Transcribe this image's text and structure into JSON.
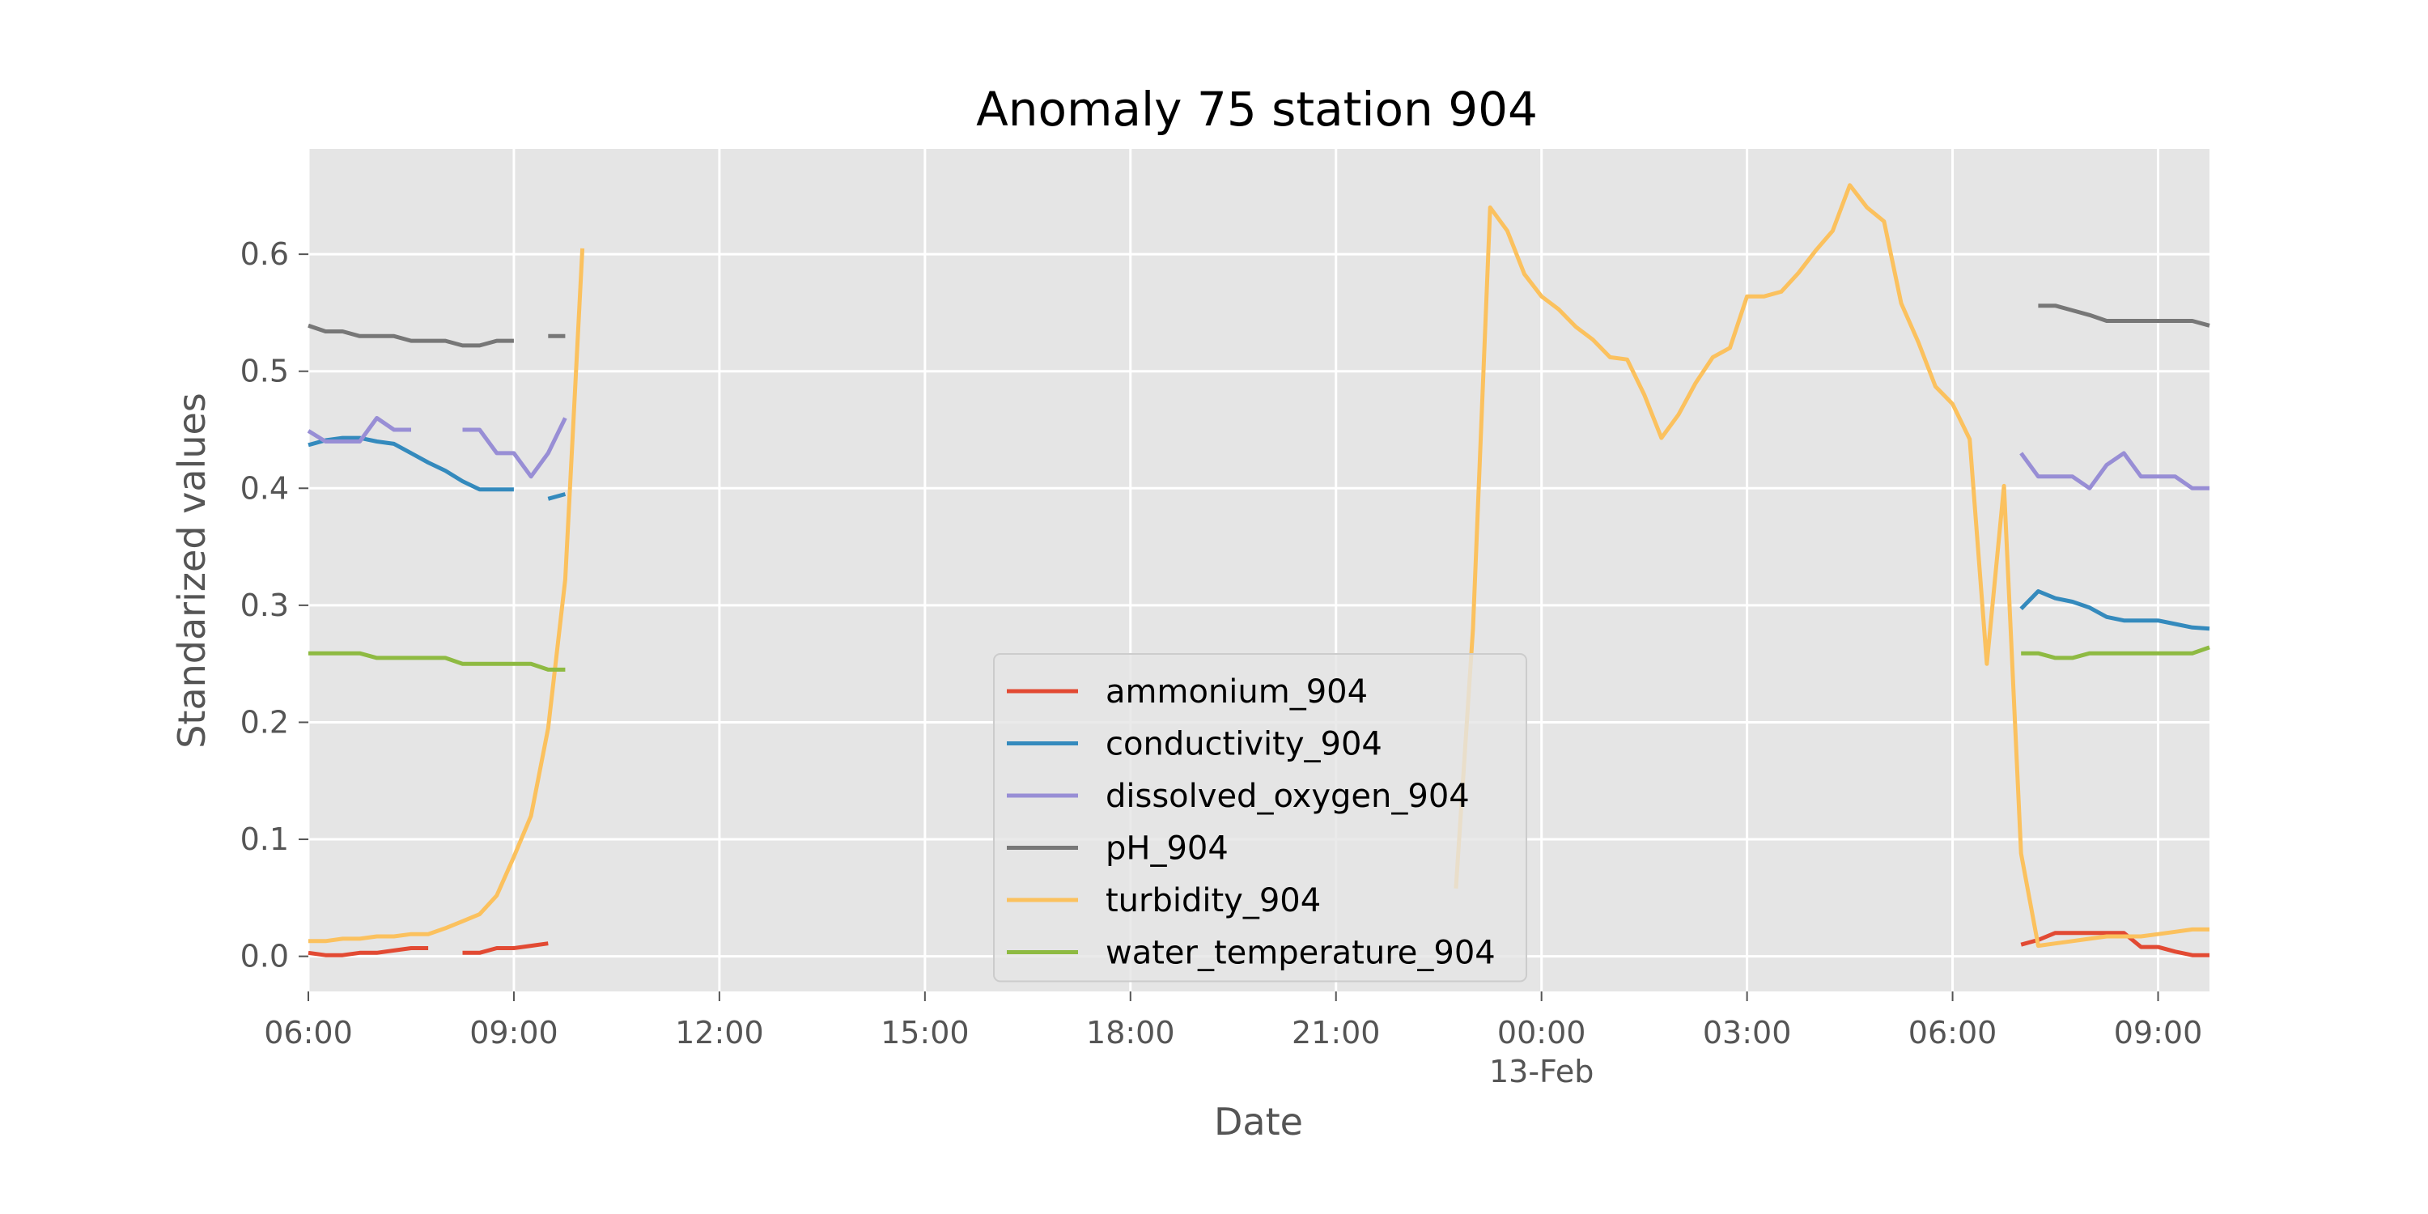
{
  "chart_data": {
    "type": "line",
    "title": "Anomaly 75 station 904",
    "xlabel": "Date",
    "ylabel": "Standarized values",
    "xlim": [
      "2024-02-12T06:00",
      "2024-02-13T09:45"
    ],
    "ylim": [
      -0.03,
      0.69
    ],
    "grid": true,
    "legend_position": "lower-center",
    "x_ticks": [
      {
        "t": "2024-02-12T06:00",
        "label": "06:00"
      },
      {
        "t": "2024-02-12T09:00",
        "label": "09:00"
      },
      {
        "t": "2024-02-12T12:00",
        "label": "12:00"
      },
      {
        "t": "2024-02-12T15:00",
        "label": "15:00"
      },
      {
        "t": "2024-02-12T18:00",
        "label": "18:00"
      },
      {
        "t": "2024-02-12T21:00",
        "label": "21:00"
      },
      {
        "t": "2024-02-13T00:00",
        "label": "00:00",
        "sublabel": "13-Feb"
      },
      {
        "t": "2024-02-13T03:00",
        "label": "03:00"
      },
      {
        "t": "2024-02-13T06:00",
        "label": "06:00"
      },
      {
        "t": "2024-02-13T09:00",
        "label": "09:00"
      }
    ],
    "y_ticks": [
      {
        "v": 0.0,
        "label": "0.0"
      },
      {
        "v": 0.1,
        "label": "0.1"
      },
      {
        "v": 0.2,
        "label": "0.2"
      },
      {
        "v": 0.3,
        "label": "0.3"
      },
      {
        "v": 0.4,
        "label": "0.4"
      },
      {
        "v": 0.5,
        "label": "0.5"
      },
      {
        "v": 0.6,
        "label": "0.6"
      }
    ],
    "series": [
      {
        "name": "ammonium_904",
        "color": "#E24A33",
        "segments": [
          [
            [
              "2024-02-12T06:00",
              0.003
            ],
            [
              "2024-02-12T06:15",
              0.001
            ],
            [
              "2024-02-12T06:30",
              0.001
            ],
            [
              "2024-02-12T06:45",
              0.003
            ],
            [
              "2024-02-12T07:00",
              0.003
            ],
            [
              "2024-02-12T07:15",
              0.005
            ],
            [
              "2024-02-12T07:30",
              0.007
            ],
            [
              "2024-02-12T07:45",
              0.007
            ]
          ],
          [
            [
              "2024-02-12T08:15",
              0.003
            ],
            [
              "2024-02-12T08:30",
              0.003
            ],
            [
              "2024-02-12T08:45",
              0.007
            ],
            [
              "2024-02-12T09:00",
              0.007
            ],
            [
              "2024-02-12T09:15",
              0.009
            ],
            [
              "2024-02-12T09:30",
              0.011
            ]
          ],
          [
            [
              "2024-02-13T07:00",
              0.01
            ],
            [
              "2024-02-13T07:15",
              0.014
            ],
            [
              "2024-02-13T07:30",
              0.02
            ],
            [
              "2024-02-13T07:45",
              0.02
            ],
            [
              "2024-02-13T08:00",
              0.02
            ],
            [
              "2024-02-13T08:15",
              0.02
            ],
            [
              "2024-02-13T08:30",
              0.02
            ],
            [
              "2024-02-13T08:45",
              0.008
            ],
            [
              "2024-02-13T09:00",
              0.008
            ],
            [
              "2024-02-13T09:15",
              0.004
            ],
            [
              "2024-02-13T09:30",
              0.001
            ],
            [
              "2024-02-13T09:45",
              0.001
            ]
          ]
        ]
      },
      {
        "name": "conductivity_904",
        "color": "#348ABD",
        "segments": [
          [
            [
              "2024-02-12T06:00",
              0.437
            ],
            [
              "2024-02-12T06:15",
              0.441
            ],
            [
              "2024-02-12T06:30",
              0.443
            ],
            [
              "2024-02-12T06:45",
              0.443
            ],
            [
              "2024-02-12T07:00",
              0.44
            ],
            [
              "2024-02-12T07:15",
              0.438
            ],
            [
              "2024-02-12T07:30",
              0.43
            ],
            [
              "2024-02-12T07:45",
              0.422
            ],
            [
              "2024-02-12T08:00",
              0.415
            ],
            [
              "2024-02-12T08:15",
              0.406
            ],
            [
              "2024-02-12T08:30",
              0.399
            ],
            [
              "2024-02-12T08:45",
              0.399
            ],
            [
              "2024-02-12T09:00",
              0.399
            ]
          ],
          [
            [
              "2024-02-12T09:30",
              0.391
            ],
            [
              "2024-02-12T09:45",
              0.395
            ]
          ],
          [
            [
              "2024-02-13T07:00",
              0.297
            ],
            [
              "2024-02-13T07:15",
              0.312
            ],
            [
              "2024-02-13T07:30",
              0.306
            ],
            [
              "2024-02-13T07:45",
              0.303
            ],
            [
              "2024-02-13T08:00",
              0.298
            ],
            [
              "2024-02-13T08:15",
              0.29
            ],
            [
              "2024-02-13T08:30",
              0.287
            ],
            [
              "2024-02-13T08:45",
              0.287
            ],
            [
              "2024-02-13T09:00",
              0.287
            ],
            [
              "2024-02-13T09:15",
              0.284
            ],
            [
              "2024-02-13T09:30",
              0.281
            ],
            [
              "2024-02-13T09:45",
              0.28
            ]
          ]
        ]
      },
      {
        "name": "dissolved_oxygen_904",
        "color": "#988ED5",
        "segments": [
          [
            [
              "2024-02-12T06:00",
              0.449
            ],
            [
              "2024-02-12T06:15",
              0.44
            ],
            [
              "2024-02-12T06:30",
              0.44
            ],
            [
              "2024-02-12T06:45",
              0.44
            ],
            [
              "2024-02-12T07:00",
              0.46
            ],
            [
              "2024-02-12T07:15",
              0.45
            ],
            [
              "2024-02-12T07:30",
              0.45
            ]
          ],
          [
            [
              "2024-02-12T08:15",
              0.45
            ],
            [
              "2024-02-12T08:30",
              0.45
            ],
            [
              "2024-02-12T08:45",
              0.43
            ],
            [
              "2024-02-12T09:00",
              0.43
            ],
            [
              "2024-02-12T09:15",
              0.41
            ],
            [
              "2024-02-12T09:30",
              0.43
            ],
            [
              "2024-02-12T09:45",
              0.46
            ]
          ],
          [
            [
              "2024-02-13T07:00",
              0.43
            ],
            [
              "2024-02-13T07:15",
              0.41
            ],
            [
              "2024-02-13T07:30",
              0.41
            ],
            [
              "2024-02-13T07:45",
              0.41
            ],
            [
              "2024-02-13T08:00",
              0.4
            ],
            [
              "2024-02-13T08:15",
              0.42
            ],
            [
              "2024-02-13T08:30",
              0.43
            ],
            [
              "2024-02-13T08:45",
              0.41
            ],
            [
              "2024-02-13T09:00",
              0.41
            ],
            [
              "2024-02-13T09:15",
              0.41
            ],
            [
              "2024-02-13T09:30",
              0.4
            ],
            [
              "2024-02-13T09:45",
              0.4
            ]
          ]
        ]
      },
      {
        "name": "pH_904",
        "color": "#777777",
        "segments": [
          [
            [
              "2024-02-12T06:00",
              0.539
            ],
            [
              "2024-02-12T06:15",
              0.534
            ],
            [
              "2024-02-12T06:30",
              0.534
            ],
            [
              "2024-02-12T06:45",
              0.53
            ],
            [
              "2024-02-12T07:00",
              0.53
            ],
            [
              "2024-02-12T07:15",
              0.53
            ],
            [
              "2024-02-12T07:30",
              0.526
            ],
            [
              "2024-02-12T07:45",
              0.526
            ],
            [
              "2024-02-12T08:00",
              0.526
            ],
            [
              "2024-02-12T08:15",
              0.522
            ],
            [
              "2024-02-12T08:30",
              0.522
            ],
            [
              "2024-02-12T08:45",
              0.526
            ],
            [
              "2024-02-12T09:00",
              0.526
            ]
          ],
          [
            [
              "2024-02-12T09:30",
              0.53
            ],
            [
              "2024-02-12T09:45",
              0.53
            ]
          ],
          [
            [
              "2024-02-13T07:15",
              0.556
            ],
            [
              "2024-02-13T07:30",
              0.556
            ],
            [
              "2024-02-13T07:45",
              0.552
            ],
            [
              "2024-02-13T08:00",
              0.548
            ],
            [
              "2024-02-13T08:15",
              0.543
            ],
            [
              "2024-02-13T08:30",
              0.543
            ],
            [
              "2024-02-13T08:45",
              0.543
            ],
            [
              "2024-02-13T09:00",
              0.543
            ],
            [
              "2024-02-13T09:15",
              0.543
            ],
            [
              "2024-02-13T09:30",
              0.543
            ],
            [
              "2024-02-13T09:45",
              0.539
            ]
          ]
        ]
      },
      {
        "name": "turbidity_904",
        "color": "#FBC15E",
        "segments": [
          [
            [
              "2024-02-12T06:00",
              0.013
            ],
            [
              "2024-02-12T06:15",
              0.013
            ],
            [
              "2024-02-12T06:30",
              0.015
            ],
            [
              "2024-02-12T06:45",
              0.015
            ],
            [
              "2024-02-12T07:00",
              0.017
            ],
            [
              "2024-02-12T07:15",
              0.017
            ],
            [
              "2024-02-12T07:30",
              0.019
            ],
            [
              "2024-02-12T07:45",
              0.019
            ],
            [
              "2024-02-12T08:00",
              0.024
            ],
            [
              "2024-02-12T08:15",
              0.03
            ],
            [
              "2024-02-12T08:30",
              0.036
            ],
            [
              "2024-02-12T08:45",
              0.052
            ],
            [
              "2024-02-12T09:00",
              0.085
            ],
            [
              "2024-02-12T09:15",
              0.12
            ],
            [
              "2024-02-12T09:30",
              0.195
            ],
            [
              "2024-02-12T09:45",
              0.322
            ],
            [
              "2024-02-12T10:00",
              0.605
            ]
          ],
          [
            [
              "2024-02-12T22:45",
              0.058
            ],
            [
              "2024-02-12T23:00",
              0.28
            ],
            [
              "2024-02-12T23:15",
              0.64
            ],
            [
              "2024-02-12T23:30",
              0.62
            ],
            [
              "2024-02-12T23:45",
              0.583
            ],
            [
              "2024-02-13T00:00",
              0.564
            ],
            [
              "2024-02-13T00:15",
              0.553
            ],
            [
              "2024-02-13T00:30",
              0.538
            ],
            [
              "2024-02-13T00:45",
              0.527
            ],
            [
              "2024-02-13T01:00",
              0.512
            ],
            [
              "2024-02-13T01:15",
              0.51
            ],
            [
              "2024-02-13T01:30",
              0.48
            ],
            [
              "2024-02-13T01:45",
              0.443
            ],
            [
              "2024-02-13T02:00",
              0.463
            ],
            [
              "2024-02-13T02:15",
              0.49
            ],
            [
              "2024-02-13T02:30",
              0.512
            ],
            [
              "2024-02-13T02:45",
              0.52
            ],
            [
              "2024-02-13T03:00",
              0.564
            ],
            [
              "2024-02-13T03:15",
              0.564
            ],
            [
              "2024-02-13T03:30",
              0.568
            ],
            [
              "2024-02-13T03:45",
              0.584
            ],
            [
              "2024-02-13T04:00",
              0.603
            ],
            [
              "2024-02-13T04:15",
              0.62
            ],
            [
              "2024-02-13T04:30",
              0.659
            ],
            [
              "2024-02-13T04:45",
              0.64
            ],
            [
              "2024-02-13T05:00",
              0.628
            ],
            [
              "2024-02-13T05:15",
              0.558
            ],
            [
              "2024-02-13T05:30",
              0.525
            ],
            [
              "2024-02-13T05:45",
              0.487
            ],
            [
              "2024-02-13T06:00",
              0.472
            ],
            [
              "2024-02-13T06:15",
              0.442
            ],
            [
              "2024-02-13T06:30",
              0.25
            ],
            [
              "2024-02-13T06:45",
              0.402
            ],
            [
              "2024-02-13T07:00",
              0.088
            ],
            [
              "2024-02-13T07:15",
              0.009
            ],
            [
              "2024-02-13T07:30",
              0.011
            ],
            [
              "2024-02-13T07:45",
              0.013
            ],
            [
              "2024-02-13T08:00",
              0.015
            ],
            [
              "2024-02-13T08:15",
              0.017
            ],
            [
              "2024-02-13T08:30",
              0.017
            ],
            [
              "2024-02-13T08:45",
              0.017
            ],
            [
              "2024-02-13T09:00",
              0.019
            ],
            [
              "2024-02-13T09:15",
              0.021
            ],
            [
              "2024-02-13T09:30",
              0.023
            ],
            [
              "2024-02-13T09:45",
              0.023
            ]
          ]
        ]
      },
      {
        "name": "water_temperature_904",
        "color": "#8EBA42",
        "segments": [
          [
            [
              "2024-02-12T06:00",
              0.259
            ],
            [
              "2024-02-12T06:15",
              0.259
            ],
            [
              "2024-02-12T06:30",
              0.259
            ],
            [
              "2024-02-12T06:45",
              0.259
            ],
            [
              "2024-02-12T07:00",
              0.255
            ],
            [
              "2024-02-12T07:15",
              0.255
            ],
            [
              "2024-02-12T07:30",
              0.255
            ],
            [
              "2024-02-12T07:45",
              0.255
            ],
            [
              "2024-02-12T08:00",
              0.255
            ],
            [
              "2024-02-12T08:15",
              0.25
            ],
            [
              "2024-02-12T08:30",
              0.25
            ],
            [
              "2024-02-12T08:45",
              0.25
            ],
            [
              "2024-02-12T09:00",
              0.25
            ],
            [
              "2024-02-12T09:15",
              0.25
            ],
            [
              "2024-02-12T09:30",
              0.245
            ],
            [
              "2024-02-12T09:45",
              0.245
            ]
          ],
          [
            [
              "2024-02-13T07:00",
              0.259
            ],
            [
              "2024-02-13T07:15",
              0.259
            ],
            [
              "2024-02-13T07:30",
              0.255
            ],
            [
              "2024-02-13T07:45",
              0.255
            ],
            [
              "2024-02-13T08:00",
              0.259
            ],
            [
              "2024-02-13T08:15",
              0.259
            ],
            [
              "2024-02-13T08:30",
              0.259
            ],
            [
              "2024-02-13T08:45",
              0.259
            ],
            [
              "2024-02-13T09:00",
              0.259
            ],
            [
              "2024-02-13T09:15",
              0.259
            ],
            [
              "2024-02-13T09:30",
              0.259
            ],
            [
              "2024-02-13T09:45",
              0.264
            ]
          ]
        ]
      }
    ]
  }
}
